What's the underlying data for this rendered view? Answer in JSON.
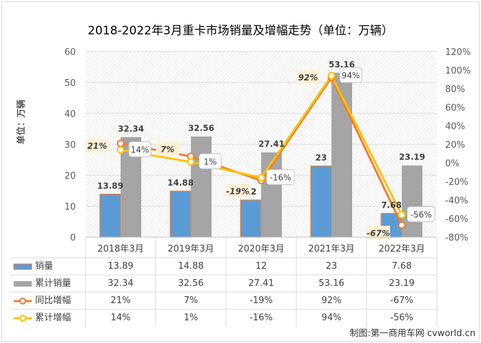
{
  "chart_data": {
    "type": "bar",
    "title": "2018-2022年3月重卡市场销量及增幅走势（单位：万辆）",
    "ylabel": "单位：万辆",
    "categories": [
      "2018年3月",
      "2019年3月",
      "2020年3月",
      "2021年3月",
      "2022年3月"
    ],
    "y_left": {
      "ylim": [
        0,
        60
      ],
      "ticks": [
        "0",
        "10",
        "20",
        "30",
        "40",
        "50",
        "60"
      ]
    },
    "y_right": {
      "ylim": [
        -80,
        120
      ],
      "ticks": [
        "-80%",
        "-60%",
        "-40%",
        "-20%",
        "0%",
        "20%",
        "40%",
        "60%",
        "80%",
        "100%",
        "120%"
      ]
    },
    "series": [
      {
        "name": "销量",
        "type": "bar",
        "color": "#5b9bd5",
        "edge": "#ed7d31",
        "values": [
          13.89,
          14.88,
          12,
          23,
          7.68
        ],
        "labels": [
          "13.89",
          "14.88",
          "12",
          "23",
          "7.68"
        ]
      },
      {
        "name": "累计销量",
        "type": "bar",
        "color": "#a5a5a5",
        "values": [
          32.34,
          32.56,
          27.41,
          53.16,
          23.19
        ],
        "labels": [
          "32.34",
          "32.56",
          "27.41",
          "53.16",
          "23.19"
        ]
      },
      {
        "name": "同比增幅",
        "type": "line",
        "axis": "right",
        "color": "#ed7d31",
        "values": [
          21,
          7,
          -19,
          92,
          -67
        ],
        "labels": [
          "21%",
          "7%",
          "-19%",
          "92%",
          "-67%"
        ]
      },
      {
        "name": "累计增幅",
        "type": "line",
        "axis": "right",
        "color": "#ffc000",
        "values": [
          14,
          1,
          -16,
          94,
          -56
        ],
        "labels": [
          "14%",
          "1%",
          "-16%",
          "94%",
          "-56%"
        ]
      }
    ],
    "grid": true,
    "legend": "bottom-table"
  },
  "credit": "制图:第一商用车网 cvworld.cn"
}
